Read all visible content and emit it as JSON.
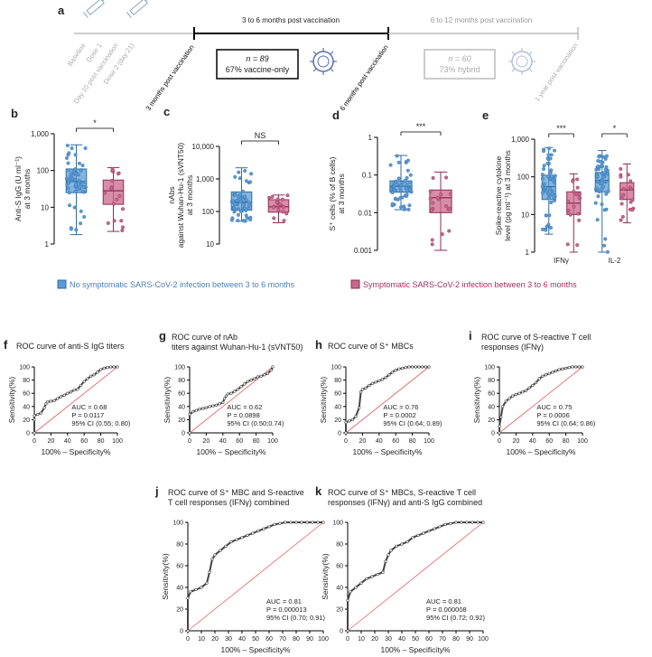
{
  "colors": {
    "blue": "#5b9bd5",
    "blue_edge": "#2e6da4",
    "pink": "#c9678a",
    "pink_edge": "#8c2e55",
    "roc_line": "#444444",
    "diag": "#e06060",
    "timeline_grey": "#bbbbbb"
  },
  "timeline": {
    "panel": "a",
    "ticks": [
      "Baseline",
      "Dose 1",
      "Day 10 post vaccination",
      "Dose 2 (day 21)",
      "3 months post vaccination",
      "6 months post vaccination",
      "1 year post vaccination"
    ],
    "period1": "3 to 6 months post vaccination",
    "period2": "6 to 12 months post vaccination",
    "box1": {
      "n": "n = 89",
      "desc": "67% vaccine-only"
    },
    "box2": {
      "n": "n = 60",
      "desc": "73% hybrid"
    }
  },
  "legend": {
    "no_infection": "No symptomatic SARS-CoV-2 infection between 3 to 6 months",
    "infection": "Symptomatic SARS-CoV-2 infection between 3 to 6 months"
  },
  "chart_data": [
    {
      "panel": "b",
      "type": "box",
      "ylabel_lines": [
        "Anti-S IgG (U ml⁻¹)",
        "at 3 months"
      ],
      "yscale": "log",
      "ylim": [
        1,
        1000
      ],
      "yticks": [
        1,
        10,
        100,
        1000
      ],
      "ytick_labels": [
        "1",
        "10",
        "100",
        "1,000"
      ],
      "significance": "*",
      "groups": [
        {
          "name": "No symptomatic infection",
          "q1": 25,
          "median": 50,
          "q3": 110,
          "whisker_low": 1.8,
          "whisker_high": 500
        },
        {
          "name": "Symptomatic infection",
          "q1": 12,
          "median": 28,
          "q3": 55,
          "whisker_low": 2.2,
          "whisker_high": 120
        }
      ]
    },
    {
      "panel": "c",
      "type": "box",
      "ylabel_lines": [
        "nAbs",
        "against Wuhan-Hu-1 (sVNT50)",
        "at 3 months"
      ],
      "yscale": "log",
      "ylim": [
        10,
        10000
      ],
      "yticks": [
        10,
        100,
        1000,
        10000
      ],
      "ytick_labels": [
        "10",
        "100",
        "1,000",
        "10,000"
      ],
      "significance": "NS",
      "groups": [
        {
          "name": "No symptomatic infection",
          "q1": 110,
          "median": 190,
          "q3": 400,
          "whisker_low": 50,
          "whisker_high": 2200
        },
        {
          "name": "Symptomatic infection",
          "q1": 95,
          "median": 140,
          "q3": 230,
          "whisker_low": 45,
          "whisker_high": 320
        }
      ]
    },
    {
      "panel": "d",
      "type": "box",
      "ylabel_lines": [
        "S⁺ cells (% of B cells)",
        "at 3 months"
      ],
      "yscale": "log",
      "ylim": [
        0.001,
        1
      ],
      "yticks": [
        0.001,
        0.01,
        0.1,
        1
      ],
      "ytick_labels": [
        "0.001",
        "0.01",
        "0.1",
        "1"
      ],
      "significance": "***",
      "groups": [
        {
          "name": "No symptomatic infection",
          "q1": 0.035,
          "median": 0.05,
          "q3": 0.07,
          "whisker_low": 0.012,
          "whisker_high": 0.33
        },
        {
          "name": "Symptomatic infection",
          "q1": 0.01,
          "median": 0.025,
          "q3": 0.04,
          "whisker_low": 0.001,
          "whisker_high": 0.12
        }
      ]
    },
    {
      "panel": "e",
      "type": "box",
      "ylabel_lines": [
        "Spike-reactive cytokine",
        "level (pg ml⁻¹) at 3 months"
      ],
      "yscale": "log",
      "ylim": [
        1,
        1000
      ],
      "yticks": [
        1,
        10,
        100,
        1000
      ],
      "ytick_labels": [
        "1",
        "10",
        "100",
        "1,000"
      ],
      "categories": [
        "IFNγ",
        "IL-2"
      ],
      "significance": [
        "***",
        "*"
      ],
      "groups": [
        {
          "name": "IFNγ no infection",
          "q1": 25,
          "median": 55,
          "q3": 110,
          "whisker_low": 3,
          "whisker_high": 600
        },
        {
          "name": "IFNγ infection",
          "q1": 10,
          "median": 20,
          "q3": 40,
          "whisker_low": 1,
          "whisker_high": 120
        },
        {
          "name": "IL-2 no infection",
          "q1": 40,
          "median": 80,
          "q3": 130,
          "whisker_low": 1,
          "whisker_high": 500
        },
        {
          "name": "IL-2 infection",
          "q1": 25,
          "median": 45,
          "q3": 70,
          "whisker_low": 6,
          "whisker_high": 220
        }
      ]
    },
    {
      "panel": "f",
      "type": "line",
      "title_lines": [
        "ROC curve of anti-S IgG titers"
      ],
      "xlabel": "100% – Specificity%",
      "ylabel": "Sensitivity(%)",
      "xlim": [
        0,
        100
      ],
      "ylim": [
        0,
        100
      ],
      "ticks": [
        0,
        20,
        40,
        60,
        80,
        100
      ],
      "auc": "AUC = 0.68",
      "p": "P = 0.0117",
      "ci": "95% CI (0.55; 0.80)",
      "x": [
        0,
        0,
        0,
        4,
        8,
        12,
        14,
        16,
        20,
        24,
        28,
        32,
        36,
        40,
        44,
        48,
        52,
        56,
        60,
        64,
        68,
        72,
        76,
        80,
        84,
        88,
        92,
        96,
        100
      ],
      "y": [
        0,
        20,
        26,
        28,
        30,
        38,
        44,
        47,
        48,
        49,
        52,
        55,
        57,
        60,
        62,
        65,
        66,
        72,
        78,
        82,
        86,
        88,
        92,
        96,
        98,
        99,
        100,
        100,
        100
      ]
    },
    {
      "panel": "g",
      "type": "line",
      "title_lines": [
        "ROC curve of nAb",
        "titers against Wuhan-Hu-1 (sVNT50)"
      ],
      "xlabel": "100% – Specificity%",
      "ylabel": "Sensitivity(%)",
      "xlim": [
        0,
        100
      ],
      "ylim": [
        0,
        100
      ],
      "ticks": [
        0,
        20,
        40,
        60,
        80,
        100
      ],
      "auc": "AUC = 0.62",
      "p": "P = 0.0898",
      "ci": "95% CI (0.50;0.74)",
      "x": [
        0,
        0,
        4,
        8,
        12,
        16,
        20,
        24,
        28,
        32,
        36,
        40,
        42,
        44,
        46,
        50,
        54,
        58,
        62,
        66,
        70,
        74,
        78,
        82,
        86,
        90,
        94,
        98,
        100
      ],
      "y": [
        0,
        28,
        32,
        34,
        36,
        37,
        38,
        40,
        41,
        42,
        44,
        46,
        52,
        56,
        59,
        60,
        63,
        66,
        70,
        74,
        78,
        80,
        82,
        85,
        86,
        88,
        90,
        95,
        100
      ]
    },
    {
      "panel": "h",
      "type": "line",
      "title_lines": [
        "ROC curve of S⁺ MBCs"
      ],
      "xlabel": "100% – Specificity%",
      "ylabel": "Sensitivity(%)",
      "xlim": [
        0,
        100
      ],
      "ylim": [
        0,
        100
      ],
      "ticks": [
        0,
        20,
        40,
        60,
        80,
        100
      ],
      "auc": "AUC = 0.76",
      "p": "P = 0.0002",
      "ci": "95% CI (0.64; 0.89)",
      "x": [
        0,
        0,
        4,
        8,
        12,
        16,
        18,
        20,
        24,
        28,
        32,
        36,
        40,
        44,
        48,
        52,
        56,
        60,
        64,
        68,
        72,
        76,
        80,
        84,
        88,
        92,
        96,
        100
      ],
      "y": [
        0,
        16,
        18,
        20,
        25,
        38,
        62,
        66,
        68,
        72,
        75,
        77,
        79,
        81,
        84,
        88,
        92,
        95,
        97,
        98,
        99,
        100,
        100,
        100,
        100,
        100,
        100,
        100
      ]
    },
    {
      "panel": "i",
      "type": "line",
      "title_lines": [
        "ROC curve of S-reactive T cell",
        "responses (IFNγ)"
      ],
      "xlabel": "100% – Specificity%",
      "ylabel": "Sensitivity(%)",
      "xlim": [
        0,
        100
      ],
      "ylim": [
        0,
        100
      ],
      "ticks": [
        0,
        20,
        40,
        60,
        80,
        100
      ],
      "auc": "AUC = 0.75",
      "p": "P = 0.0006",
      "ci": "95% CI (0.64; 0.86)",
      "x": [
        0,
        0,
        2,
        4,
        8,
        12,
        16,
        20,
        24,
        28,
        32,
        36,
        40,
        44,
        48,
        52,
        56,
        60,
        64,
        68,
        72,
        76,
        80,
        84,
        88,
        92,
        96,
        100
      ],
      "y": [
        0,
        10,
        24,
        40,
        48,
        52,
        56,
        58,
        60,
        62,
        64,
        68,
        72,
        76,
        82,
        86,
        88,
        90,
        92,
        94,
        96,
        97,
        98,
        99,
        100,
        100,
        100,
        100
      ]
    },
    {
      "panel": "j",
      "type": "line",
      "title_lines": [
        "ROC curve of S⁺ MBC and S-reactive",
        "T cell responses (IFNγ) combined"
      ],
      "xlabel": "100% – Specificity%",
      "ylabel": "Sensitivity(%)",
      "xlim": [
        0,
        100
      ],
      "ylim": [
        0,
        100
      ],
      "ticks": [
        0,
        10,
        20,
        30,
        40,
        50,
        60,
        70,
        80,
        90,
        100
      ],
      "auc": "AUC = 0.81",
      "p": "P = 0.000013",
      "ci": "95% CI (0.70; 0.91)",
      "x": [
        0,
        0,
        2,
        6,
        10,
        14,
        16,
        18,
        20,
        24,
        28,
        32,
        36,
        40,
        44,
        48,
        52,
        56,
        60,
        64,
        68,
        72,
        76,
        80,
        84,
        88,
        92,
        96,
        100
      ],
      "y": [
        0,
        30,
        36,
        38,
        40,
        44,
        54,
        66,
        70,
        74,
        78,
        82,
        84,
        86,
        88,
        90,
        92,
        94,
        96,
        98,
        99,
        100,
        100,
        100,
        100,
        100,
        100,
        100,
        100
      ]
    },
    {
      "panel": "k",
      "type": "line",
      "title_lines": [
        "ROC curve of S⁺ MBCs, S-reactive T cell",
        "responses (IFNγ) and anti-S IgG combined"
      ],
      "xlabel": "100% – Specificity%",
      "ylabel": "Sensitivity(%)",
      "xlim": [
        0,
        100
      ],
      "ylim": [
        0,
        100
      ],
      "ticks": [
        0,
        10,
        20,
        30,
        40,
        50,
        60,
        70,
        80,
        90,
        100
      ],
      "auc": "AUC = 0.81",
      "p": "P = 0.000008",
      "ci": "95% CI (0.72; 0.92)",
      "x": [
        0,
        0,
        2,
        6,
        10,
        14,
        18,
        22,
        26,
        28,
        30,
        32,
        36,
        40,
        44,
        48,
        52,
        56,
        60,
        64,
        68,
        72,
        76,
        80,
        84,
        88,
        92,
        96,
        100
      ],
      "y": [
        0,
        28,
        36,
        40,
        44,
        48,
        50,
        52,
        54,
        64,
        70,
        74,
        78,
        80,
        82,
        86,
        88,
        90,
        92,
        94,
        96,
        98,
        99,
        100,
        100,
        100,
        100,
        100,
        100
      ]
    }
  ]
}
